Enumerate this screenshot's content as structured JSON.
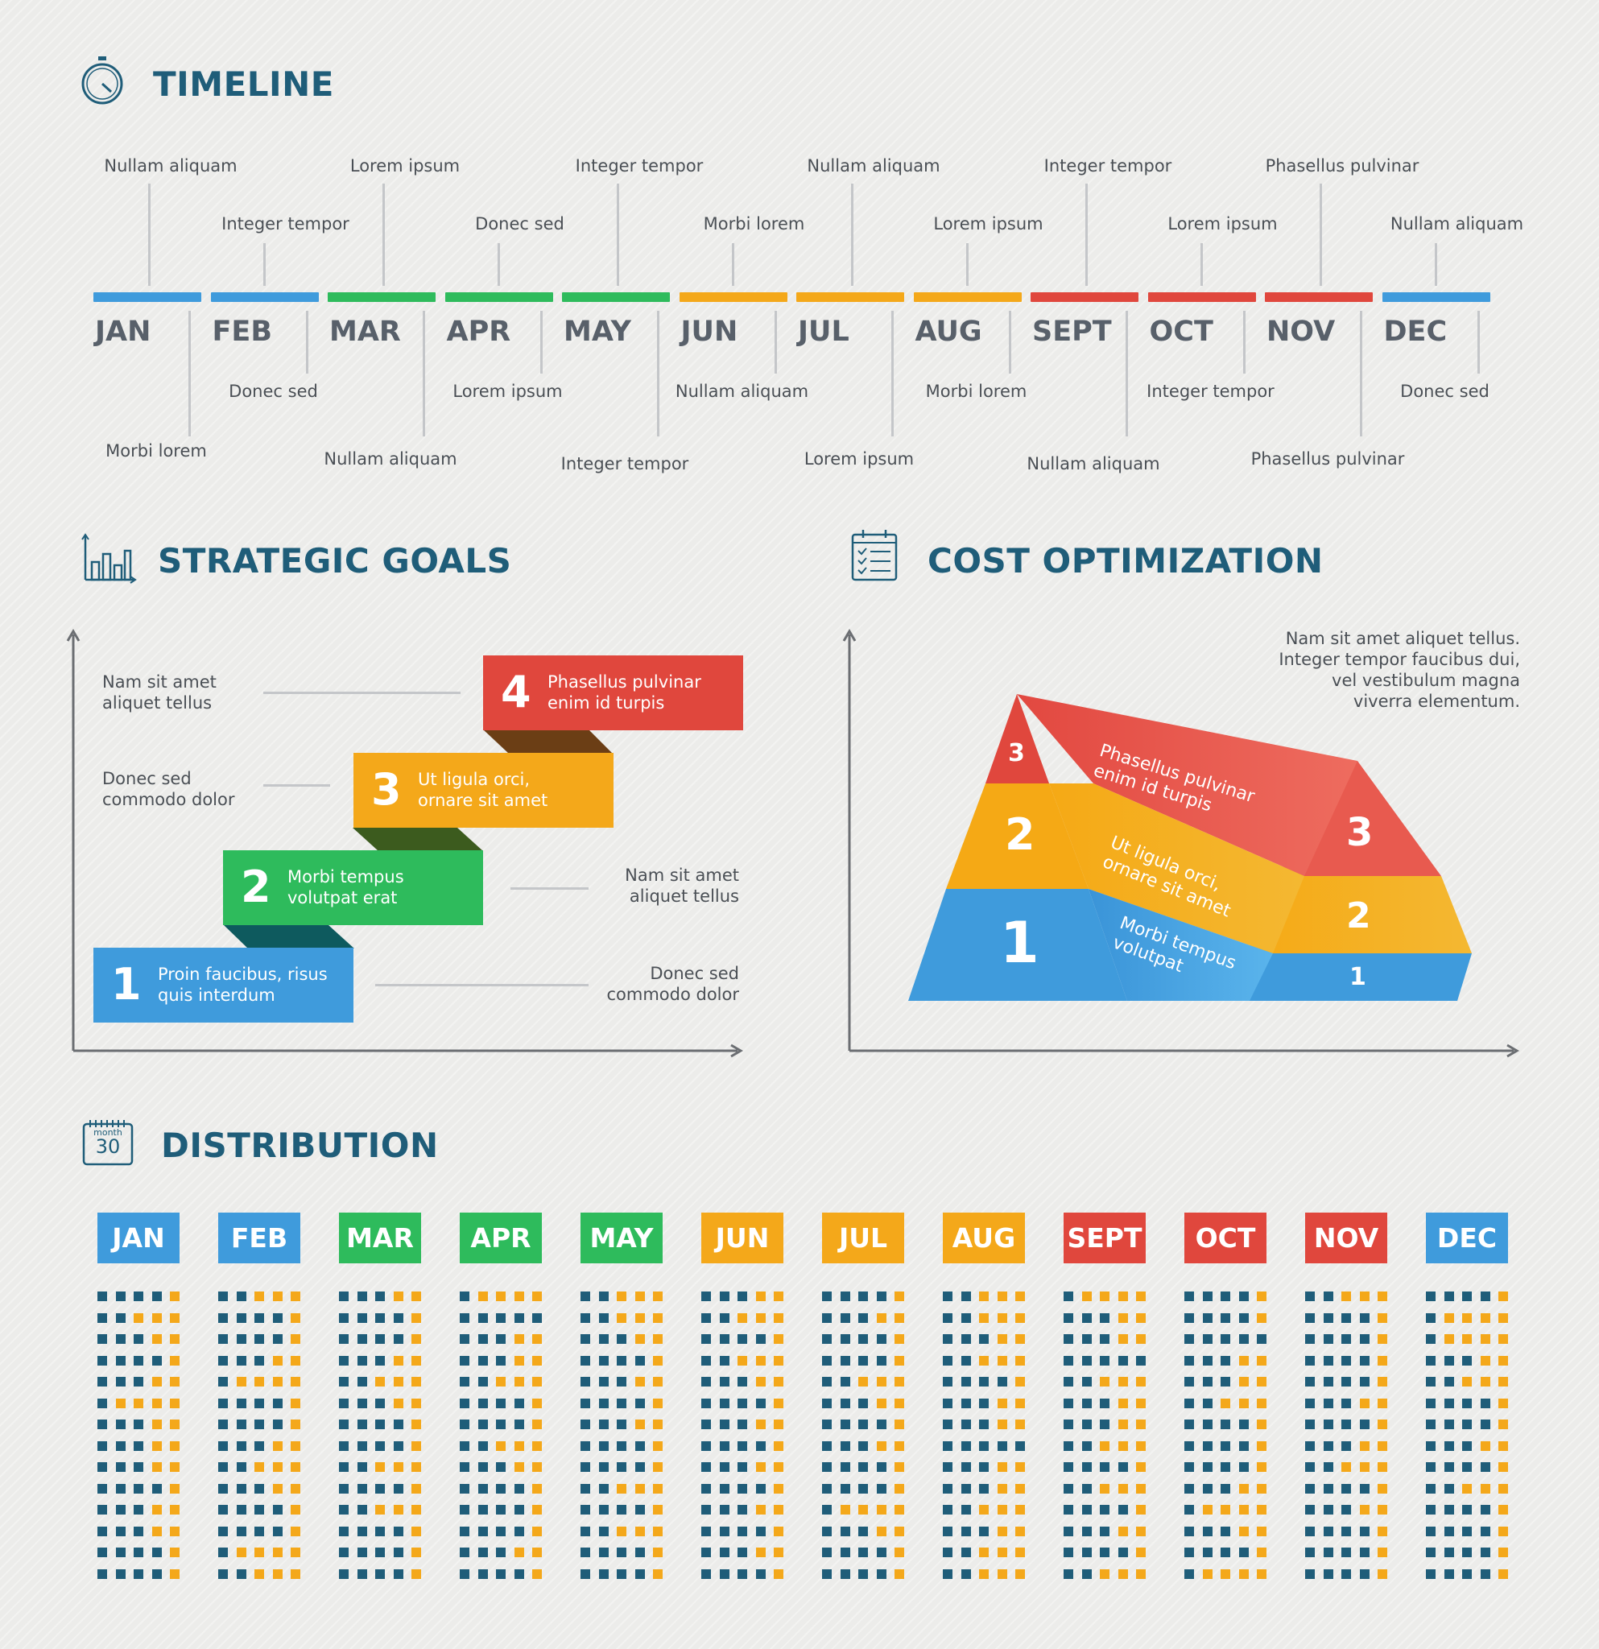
{
  "colors": {
    "blue": "#3f9bdc",
    "green": "#2ebb5c",
    "orange": "#f4a81a",
    "red": "#e0473d",
    "navy": "#1f5d79",
    "axis": "#6b6e72"
  },
  "timeline": {
    "title": "TIMELINE",
    "icon": "stopwatch-icon",
    "months": [
      {
        "name": "JAN",
        "color": "blue"
      },
      {
        "name": "FEB",
        "color": "blue"
      },
      {
        "name": "MAR",
        "color": "green"
      },
      {
        "name": "APR",
        "color": "green"
      },
      {
        "name": "MAY",
        "color": "green"
      },
      {
        "name": "JUN",
        "color": "orange"
      },
      {
        "name": "JUL",
        "color": "orange"
      },
      {
        "name": "AUG",
        "color": "orange"
      },
      {
        "name": "SEPT",
        "color": "red"
      },
      {
        "name": "OCT",
        "color": "red"
      },
      {
        "name": "NOV",
        "color": "red"
      },
      {
        "name": "DEC",
        "color": "blue"
      }
    ],
    "top_labels": [
      "Nullam aliquam",
      "Integer tempor",
      "Lorem ipsum",
      "Donec sed",
      "Integer tempor",
      "Morbi lorem",
      "Nullam aliquam",
      "Lorem ipsum",
      "Integer tempor",
      "Lorem ipsum",
      "Phasellus pulvinar",
      "Nullam aliquam"
    ],
    "bottom_labels": [
      "Morbi lorem",
      "Donec sed",
      "Nullam aliquam",
      "Lorem ipsum",
      "Integer tempor",
      "Nullam aliquam",
      "Lorem ipsum",
      "Morbi lorem",
      "Nullam aliquam",
      "Integer tempor",
      "Phasellus pulvinar",
      "Donec sed"
    ]
  },
  "strategic": {
    "title": "STRATEGIC GOALS",
    "icon": "bar-chart-icon",
    "steps": [
      {
        "num": "1",
        "text": "Proin faucibus, risus\nquis interdum",
        "color": "blue"
      },
      {
        "num": "2",
        "text": "Morbi tempus\nvolutpat erat",
        "color": "green"
      },
      {
        "num": "3",
        "text": "Ut ligula orci,\nornare sit amet",
        "color": "orange"
      },
      {
        "num": "4",
        "text": "Phasellus pulvinar\nenim id turpis",
        "color": "red"
      }
    ],
    "notes": [
      "Nam sit amet\naliquet tellus",
      "Donec sed\ncommodo dolor",
      "Nam sit amet\naliquet tellus",
      "Donec sed\ncommodo dolor"
    ]
  },
  "cost": {
    "title": "COST OPTIMIZATION",
    "icon": "checklist-icon",
    "description": "Nam sit amet aliquet tellus.\nInteger tempor faucibus dui,\nvel vestibulum magna\nviverra elementum.",
    "left_levels": [
      "1",
      "2",
      "3"
    ],
    "right_levels": [
      "1",
      "2",
      "3"
    ],
    "band_labels": [
      "Phasellus pulvinar\nenim id turpis",
      "Ut ligula orci,\nornare sit amet",
      "Morbi tempus\nvolutpat"
    ]
  },
  "distribution": {
    "title": "DISTRIBUTION",
    "icon": "calendar-icon",
    "icon_text_top": "month",
    "icon_text_num": "30",
    "months": [
      {
        "name": "JAN",
        "color": "blue",
        "rows": [
          "BBBBO",
          "BBOOO",
          "BBBOO",
          "BBBBO",
          "BBBOO",
          "BOOOO",
          "BBBOO",
          "BBBOO",
          "BBBOO",
          "BBBBO",
          "BBBOO",
          "BBBOO",
          "BBBBO",
          "BBBBO"
        ]
      },
      {
        "name": "FEB",
        "color": "blue",
        "rows": [
          "BBOOO",
          "BBBBO",
          "BBBBO",
          "BBBOO",
          "BOOOO",
          "BBBBO",
          "BBBBO",
          "BBBOO",
          "BBOOO",
          "BBBOO",
          "BBBBO",
          "BBBBO",
          "BOOOO",
          "BBOOO"
        ]
      },
      {
        "name": "MAR",
        "color": "green",
        "rows": [
          "BBBOO",
          "BBBBO",
          "BBBBO",
          "BBBOO",
          "BBOOO",
          "BBBOO",
          "BBBBO",
          "BBBBO",
          "BBOOO",
          "BBBBO",
          "BBOOO",
          "BBBBO",
          "BBBBO",
          "BBBBO"
        ]
      },
      {
        "name": "APR",
        "color": "green",
        "rows": [
          "BOOOO",
          "BBBBB",
          "BBBOO",
          "BBBOO",
          "BBOOO",
          "BBBBO",
          "BBBBO",
          "BBOOO",
          "BBBOO",
          "BBBBO",
          "BBBBO",
          "BBBBO",
          "BBBOO",
          "BBBBO"
        ]
      },
      {
        "name": "MAY",
        "color": "green",
        "rows": [
          "BBOOO",
          "BBOOO",
          "BBBOO",
          "BBBBO",
          "BBBOO",
          "BBBBO",
          "BBBOO",
          "BBBBO",
          "BBBBO",
          "BBOOO",
          "BBBBO",
          "BBOOO",
          "BBBBO",
          "BBBBO"
        ]
      },
      {
        "name": "JUN",
        "color": "orange",
        "rows": [
          "BBBOO",
          "BBOOO",
          "BBBBO",
          "BBOOO",
          "BBBOO",
          "BBBBO",
          "BBBOO",
          "BBBBO",
          "BBBOO",
          "BBBBO",
          "BBBOO",
          "BBBBO",
          "BBBOO",
          "BBBBO"
        ]
      },
      {
        "name": "JUL",
        "color": "orange",
        "rows": [
          "BBBBO",
          "BBBOO",
          "BBBBO",
          "BBBBO",
          "BBOOO",
          "BBBOO",
          "BBBBO",
          "BBBOO",
          "BBBBO",
          "BBBBO",
          "BOOOO",
          "BBBOO",
          "BBBBO",
          "BBBBO"
        ]
      },
      {
        "name": "AUG",
        "color": "orange",
        "rows": [
          "BBOOO",
          "BBOOO",
          "BBBOO",
          "BBOOO",
          "BBBBO",
          "BBBOO",
          "BBBOO",
          "BBBBB",
          "BBBOO",
          "BBBOO",
          "BBOOO",
          "BBBOO",
          "BBOOO",
          "BBOOO"
        ]
      },
      {
        "name": "SEPT",
        "color": "red",
        "rows": [
          "BOOOO",
          "BBBOO",
          "BBBOO",
          "BBBBB",
          "BBOOO",
          "BBBOO",
          "BBBOO",
          "BBOOO",
          "BBBBO",
          "BBOOO",
          "BBBBO",
          "BBBOO",
          "BBBBO",
          "BBOOO"
        ]
      },
      {
        "name": "OCT",
        "color": "red",
        "rows": [
          "BBBBO",
          "BBBBO",
          "BBBBB",
          "BBBOO",
          "BBBOO",
          "BBOOO",
          "BBBBO",
          "BBBBO",
          "BBBBO",
          "BBBOO",
          "BOOOO",
          "BBBOO",
          "BBBBO",
          "BOOOO"
        ]
      },
      {
        "name": "NOV",
        "color": "red",
        "rows": [
          "BBOOO",
          "BBBBO",
          "BBBBO",
          "BBBBO",
          "BBBBO",
          "BBBOO",
          "BBBBO",
          "BBBOO",
          "BBOOO",
          "BBBBO",
          "BBBOO",
          "BBBBO",
          "BBBBO",
          "BBBBO"
        ]
      },
      {
        "name": "DEC",
        "color": "blue",
        "rows": [
          "BBBBO",
          "BOOOO",
          "BOOOO",
          "BBBOO",
          "BBOOO",
          "BBBBO",
          "BBBBO",
          "BBBOO",
          "BBBBO",
          "BBOOO",
          "BBBBO",
          "BBBBO",
          "BBBBO",
          "BBBBO"
        ]
      }
    ]
  }
}
